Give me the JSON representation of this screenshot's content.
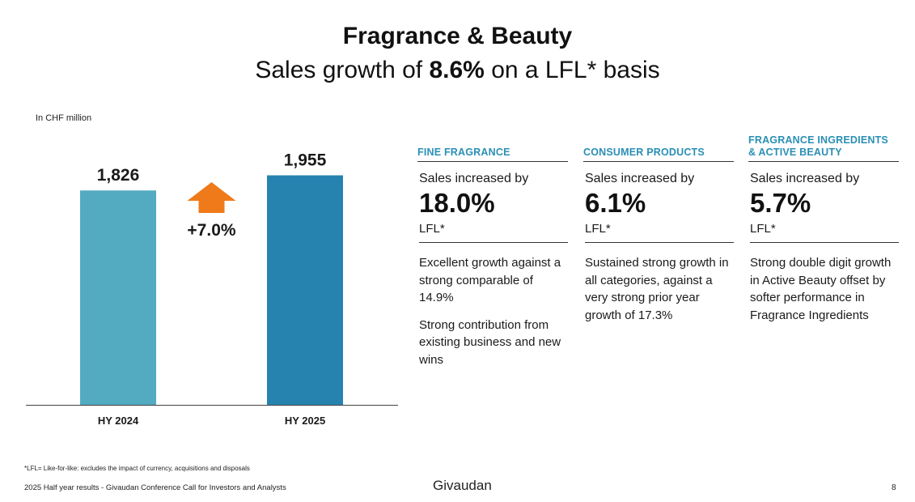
{
  "title": "Fragrance & Beauty",
  "subtitle": {
    "prefix": "Sales growth of ",
    "highlight": "8.6%",
    "suffix": " on a LFL* basis"
  },
  "unit_note": "In CHF million",
  "chart_data": {
    "type": "bar",
    "categories": [
      "HY 2024",
      "HY 2025"
    ],
    "values": [
      1826,
      1955
    ],
    "value_labels": [
      "1,826",
      "1,955"
    ],
    "bar_colors": [
      "#52abc1",
      "#2683b0"
    ],
    "growth_label": "+7.0%",
    "growth_arrow_color": "#ef7a1a",
    "ylim": [
      0,
      2000
    ],
    "title": "",
    "xlabel": "",
    "ylabel": ""
  },
  "segments": [
    {
      "heading": [
        "FINE FRAGRANCE"
      ],
      "increase_text": "Sales increased by",
      "percent": "18.0%",
      "basis": "LFL*",
      "description": [
        "Excellent growth against a strong comparable of 14.9%",
        "Strong contribution from existing business and new wins"
      ]
    },
    {
      "heading": [
        "CONSUMER PRODUCTS"
      ],
      "increase_text": "Sales increased by",
      "percent": "6.1%",
      "basis": "LFL*",
      "description": [
        "Sustained strong growth in all categories, against a very strong prior year growth of 17.3%"
      ]
    },
    {
      "heading": [
        "FRAGRANCE INGREDIENTS",
        "& ACTIVE BEAUTY"
      ],
      "increase_text": "Sales increased by",
      "percent": "5.7%",
      "basis": "LFL*",
      "description": [
        "Strong double digit growth in Active Beauty offset by softer performance in Fragrance Ingredients"
      ]
    }
  ],
  "footnote": "*LFL= Like-for-like: excludes the impact of currency, acquisitions and disposals",
  "footer": "2025 Half year results - Givaudan Conference Call for Investors and Analysts",
  "brand": "Givaudan",
  "page_number": "8",
  "colors": {
    "heading_accent": "#2a8fb5"
  }
}
